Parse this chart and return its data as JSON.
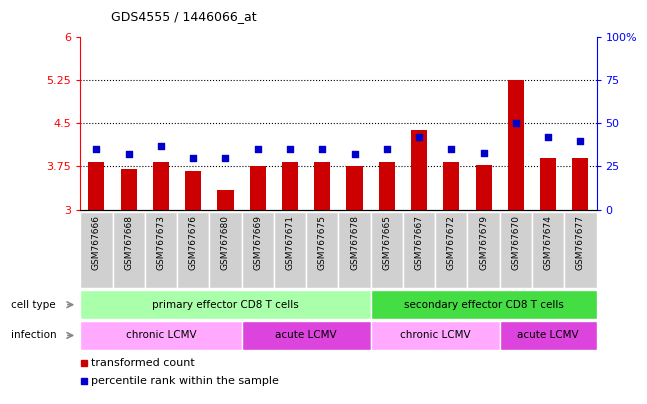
{
  "title": "GDS4555 / 1446066_at",
  "samples": [
    "GSM767666",
    "GSM767668",
    "GSM767673",
    "GSM767676",
    "GSM767680",
    "GSM767669",
    "GSM767671",
    "GSM767675",
    "GSM767678",
    "GSM767665",
    "GSM767667",
    "GSM767672",
    "GSM767679",
    "GSM767670",
    "GSM767674",
    "GSM767677"
  ],
  "transformed_count": [
    3.82,
    3.7,
    3.82,
    3.68,
    3.35,
    3.75,
    3.82,
    3.82,
    3.75,
    3.82,
    4.38,
    3.82,
    3.78,
    5.25,
    3.9,
    3.9
  ],
  "percentile_rank": [
    35,
    32,
    37,
    30,
    30,
    35,
    35,
    35,
    32,
    35,
    42,
    35,
    33,
    50,
    42,
    40
  ],
  "bar_color": "#cc0000",
  "dot_color": "#0000cc",
  "ylim_left": [
    3,
    6
  ],
  "ylim_right": [
    0,
    100
  ],
  "yticks_left": [
    3,
    3.75,
    4.5,
    5.25,
    6
  ],
  "yticks_right": [
    0,
    25,
    50,
    75,
    100
  ],
  "ytick_labels_left": [
    "3",
    "3.75",
    "4.5",
    "5.25",
    "6"
  ],
  "ytick_labels_right": [
    "0",
    "25",
    "50",
    "75",
    "100%"
  ],
  "hlines": [
    3.75,
    4.5,
    5.25
  ],
  "cell_type_groups": [
    {
      "label": "primary effector CD8 T cells",
      "start": 0,
      "end": 9,
      "color": "#aaffaa"
    },
    {
      "label": "secondary effector CD8 T cells",
      "start": 9,
      "end": 16,
      "color": "#44dd44"
    }
  ],
  "infection_groups": [
    {
      "label": "chronic LCMV",
      "start": 0,
      "end": 5,
      "color": "#ffaaff"
    },
    {
      "label": "acute LCMV",
      "start": 5,
      "end": 9,
      "color": "#dd44dd"
    },
    {
      "label": "chronic LCMV",
      "start": 9,
      "end": 13,
      "color": "#ffaaff"
    },
    {
      "label": "acute LCMV",
      "start": 13,
      "end": 16,
      "color": "#dd44dd"
    }
  ],
  "legend_items": [
    {
      "label": "transformed count",
      "color": "#cc0000"
    },
    {
      "label": "percentile rank within the sample",
      "color": "#0000cc"
    }
  ],
  "background_color": "#ffffff",
  "xtick_bg_color": "#d0d0d0",
  "xtick_border_color": "#ffffff"
}
